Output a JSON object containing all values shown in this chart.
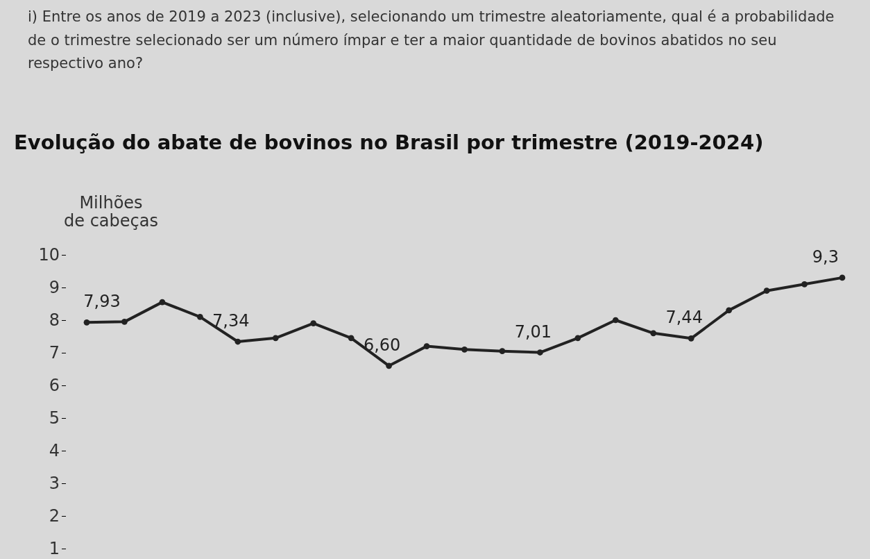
{
  "chart_data": {
    "type": "line",
    "title": "Evolução do abate de bovinos no Brasil por trimestre (2019-2024)",
    "annotations": [
      "i) Entre os anos de 2019 a 2023 (inclusive), selecionando um trimestre aleatoriamente, qual é a probabilidade de o trimestre selecionado ser um número ímpar e ter a maior quantidade de bovinos abatidos no seu respectivo ano?"
    ],
    "ylabel": "Milhões de cabeças",
    "categories": [
      null,
      null,
      null,
      null,
      null,
      null,
      null,
      null,
      null,
      null,
      null,
      null,
      null,
      null,
      null,
      null,
      null,
      null,
      null,
      null,
      null
    ],
    "series": [
      {
        "color": "#222222",
        "values": [
          7.93,
          7.95,
          8.55,
          8.1,
          7.34,
          7.45,
          7.9,
          7.45,
          6.6,
          7.2,
          7.1,
          7.05,
          7.01,
          7.45,
          8.0,
          7.6,
          7.44,
          8.3,
          8.9,
          9.1,
          9.3
        ],
        "value_labels": [
          "7,93",
          null,
          null,
          null,
          "7,34",
          null,
          null,
          null,
          "6,60",
          null,
          null,
          null,
          "7,01",
          null,
          null,
          null,
          "7,44",
          null,
          null,
          null,
          "9,3"
        ]
      }
    ],
    "ylim": [
      1,
      10
    ],
    "yticks": [
      1,
      2,
      3,
      4,
      5,
      6,
      7,
      8,
      9,
      10
    ],
    "marker": "circle",
    "line_style": "solid"
  }
}
